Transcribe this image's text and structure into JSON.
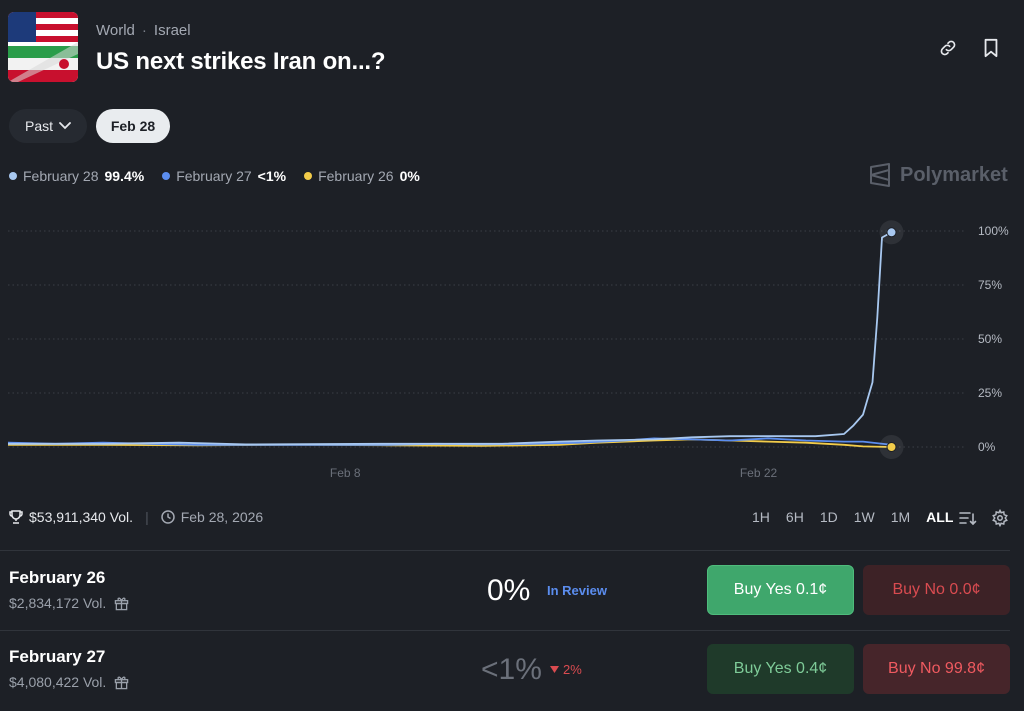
{
  "header": {
    "category": "World",
    "subcategory": "Israel",
    "title": "US next strikes Iran on...?"
  },
  "filters": {
    "past_label": "Past",
    "selected_date": "Feb 28"
  },
  "legend": [
    {
      "label": "February 28",
      "value": "99.4%",
      "color": "#a8c8f0"
    },
    {
      "label": "February 27",
      "value": "<1%",
      "color": "#5b8def"
    },
    {
      "label": "February 26",
      "value": "0%",
      "color": "#f2cc4a"
    }
  ],
  "brand": "Polymarket",
  "chart_data": {
    "type": "line",
    "x_ticks": [
      "Feb 8",
      "Feb 22"
    ],
    "y_ticks": [
      "100%",
      "75%",
      "50%",
      "25%",
      "0%"
    ],
    "ylim": [
      0,
      100
    ],
    "grid": true,
    "series": [
      {
        "name": "February 28",
        "color": "#a8c8f0",
        "points": [
          [
            0,
            1.5
          ],
          [
            10,
            1.5
          ],
          [
            18,
            2
          ],
          [
            25,
            1.2
          ],
          [
            40,
            1.5
          ],
          [
            52,
            1.5
          ],
          [
            58,
            2.5
          ],
          [
            62,
            3
          ],
          [
            68,
            3.5
          ],
          [
            72,
            4.5
          ],
          [
            76,
            5
          ],
          [
            80,
            5
          ],
          [
            85,
            5
          ],
          [
            88,
            6
          ],
          [
            89,
            10
          ],
          [
            90,
            15
          ],
          [
            91,
            30
          ],
          [
            91.5,
            60
          ],
          [
            92,
            97
          ],
          [
            93,
            99.4
          ]
        ]
      },
      {
        "name": "February 27",
        "color": "#5b8def",
        "points": [
          [
            0,
            2
          ],
          [
            5,
            1.5
          ],
          [
            10,
            2
          ],
          [
            15,
            1.5
          ],
          [
            20,
            1
          ],
          [
            30,
            1
          ],
          [
            40,
            1
          ],
          [
            45,
            1.5
          ],
          [
            50,
            1.2
          ],
          [
            55,
            1.5
          ],
          [
            60,
            2
          ],
          [
            65,
            3
          ],
          [
            68,
            4
          ],
          [
            72,
            3.5
          ],
          [
            76,
            3
          ],
          [
            80,
            4
          ],
          [
            84,
            3
          ],
          [
            88,
            2.5
          ],
          [
            90,
            2.5
          ],
          [
            93,
            1
          ]
        ]
      },
      {
        "name": "February 26",
        "color": "#f2cc4a",
        "points": [
          [
            0,
            1
          ],
          [
            10,
            1
          ],
          [
            20,
            0.8
          ],
          [
            30,
            1
          ],
          [
            40,
            0.8
          ],
          [
            50,
            0.5
          ],
          [
            58,
            1
          ],
          [
            62,
            2
          ],
          [
            68,
            3
          ],
          [
            72,
            3.5
          ],
          [
            76,
            3
          ],
          [
            80,
            2.5
          ],
          [
            84,
            2
          ],
          [
            88,
            1
          ],
          [
            90,
            0.3
          ],
          [
            93,
            0
          ]
        ]
      }
    ]
  },
  "stats": {
    "volume": "$53,911,340 Vol.",
    "end_date": "Feb 28, 2026"
  },
  "ranges": [
    "1H",
    "6H",
    "1D",
    "1W",
    "1M",
    "ALL"
  ],
  "active_range": "ALL",
  "outcomes": [
    {
      "title": "February 26",
      "volume": "$2,834,172 Vol.",
      "percent": "0%",
      "status": "In Review",
      "buy_yes": "Buy Yes 0.1¢",
      "buy_no": "Buy No 0.0¢"
    },
    {
      "title": "February 27",
      "volume": "$4,080,422 Vol.",
      "percent": "<1%",
      "change": "2%",
      "buy_yes": "Buy Yes 0.4¢",
      "buy_no": "Buy No 99.8¢"
    }
  ]
}
